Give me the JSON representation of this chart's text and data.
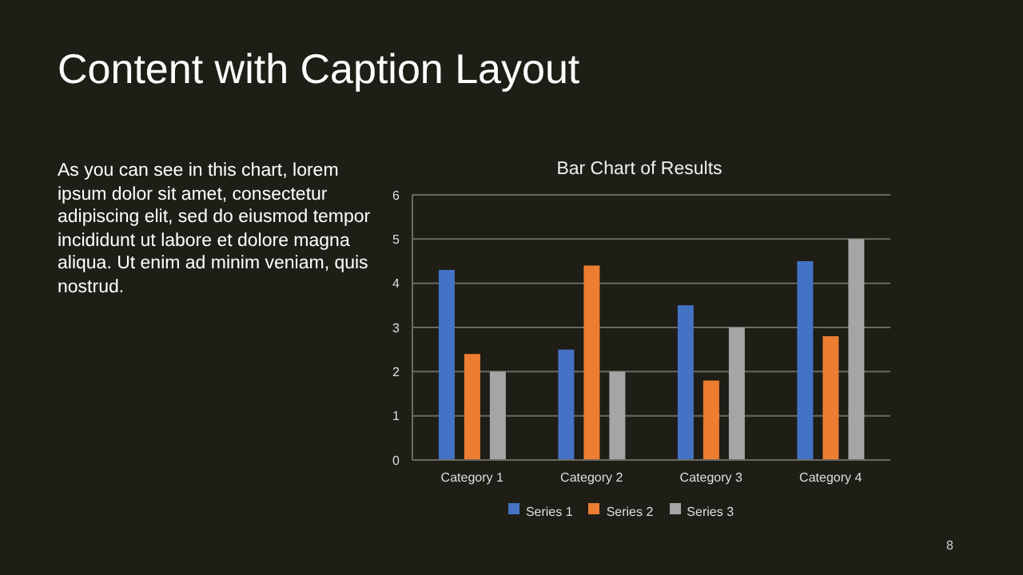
{
  "chart_data": {
    "type": "bar",
    "title": "Bar Chart of Results",
    "annotations": [
      "Content with Caption Layout",
      "As you can see in this chart, lorem ipsum dolor sit amet, consectetur adipiscing elit, sed do eiusmod tempor incididunt ut labore et dolore magna aliqua. Ut enim ad minim veniam, quis nostrud.",
      "8"
    ],
    "categories": [
      "Category 1",
      "Category 2",
      "Category 3",
      "Category 4"
    ],
    "series": [
      {
        "name": "Series 1",
        "color": "#4472c4",
        "values": [
          4.3,
          2.5,
          3.5,
          4.5
        ]
      },
      {
        "name": "Series 2",
        "color": "#ed7d31",
        "values": [
          2.4,
          4.4,
          1.8,
          2.8
        ]
      },
      {
        "name": "Series 3",
        "color": "#a5a5a5",
        "values": [
          2,
          2,
          3,
          5
        ]
      }
    ],
    "ylim": [
      0,
      6
    ],
    "yticks": [
      0,
      1,
      2,
      3,
      4,
      5,
      6
    ],
    "grid": "y",
    "legend": "bottom"
  }
}
